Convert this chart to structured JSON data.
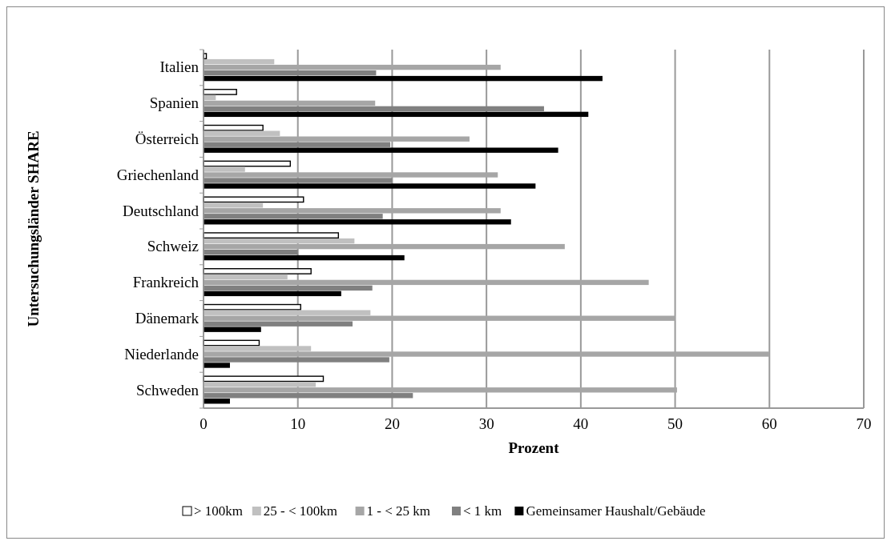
{
  "chart_data": {
    "type": "bar",
    "orientation": "horizontal",
    "xlabel": "Prozent",
    "ylabel": "Untersuchungsländer SHARE",
    "categories": [
      "Italien",
      "Spanien",
      "Österreich",
      "Griechenland",
      "Deutschland",
      "Schweiz",
      "Frankreich",
      "Dänemark",
      "Niederlande",
      "Schweden"
    ],
    "series": [
      {
        "name": "> 100km",
        "color": "#ffffff",
        "values": [
          0.3,
          3.5,
          6.3,
          9.2,
          10.6,
          14.3,
          11.4,
          10.3,
          5.9,
          12.7
        ]
      },
      {
        "name": "25 - < 100km",
        "color": "#c0c0c0",
        "values": [
          7.5,
          1.3,
          8.1,
          4.4,
          6.3,
          16.0,
          8.9,
          17.7,
          11.4,
          11.9
        ]
      },
      {
        "name": "1 - < 25 km",
        "color": "#a6a6a6",
        "values": [
          31.5,
          18.2,
          28.2,
          31.2,
          31.5,
          38.3,
          47.2,
          50.0,
          60.0,
          50.2
        ]
      },
      {
        "name": "< 1 km",
        "color": "#808080",
        "values": [
          18.3,
          36.1,
          19.8,
          20.0,
          19.0,
          10.0,
          17.9,
          15.8,
          19.7,
          22.2
        ]
      },
      {
        "name": "Gemeinsamer Haushalt/Gebäude",
        "color": "#000000",
        "values": [
          42.3,
          40.8,
          37.6,
          35.2,
          32.6,
          21.3,
          14.6,
          6.1,
          2.8,
          2.8
        ]
      }
    ],
    "xlim": [
      0,
      70
    ],
    "xticks": [
      0,
      10,
      20,
      30,
      40,
      50,
      60,
      70
    ],
    "grid": "x",
    "legend": "bottom"
  }
}
